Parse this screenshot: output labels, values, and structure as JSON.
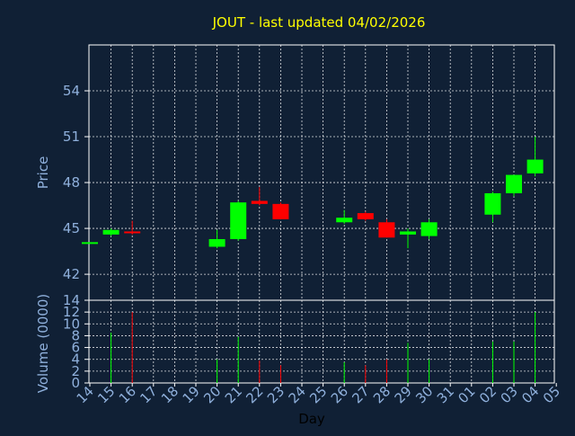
{
  "chart_data": [
    {
      "type": "candlestick",
      "title": "JOUT - last updated 04/02/2026",
      "ylabel": "Price",
      "ylim": [
        40.3,
        57.0
      ],
      "yticks": [
        42,
        45,
        48,
        51,
        54
      ],
      "grid": true,
      "colors": {
        "background": "#102035",
        "up": "#00ff00",
        "down": "#ff0000",
        "axis_text": "#8fb0dc",
        "title": "#ffff00",
        "grid": "#ffffff"
      },
      "x_ticks": [
        "14",
        "15",
        "16",
        "17",
        "18",
        "19",
        "20",
        "21",
        "22",
        "23",
        "24",
        "25",
        "26",
        "27",
        "28",
        "29",
        "30",
        "31",
        "01",
        "02",
        "03",
        "04",
        "05"
      ],
      "candles": [
        {
          "x": 0,
          "open": 44.1,
          "high": 44.1,
          "low": 44.1,
          "close": 44.1
        },
        {
          "x": 1,
          "open": 44.6,
          "high": 45.0,
          "low": 44.5,
          "close": 44.9
        },
        {
          "x": 2,
          "open": 44.8,
          "high": 45.5,
          "low": 44.6,
          "close": 44.7
        },
        {
          "x": 6,
          "open": 43.8,
          "high": 44.9,
          "low": 43.7,
          "close": 44.3
        },
        {
          "x": 7,
          "open": 44.3,
          "high": 46.8,
          "low": 44.2,
          "close": 46.7
        },
        {
          "x": 8,
          "open": 46.8,
          "high": 47.7,
          "low": 46.5,
          "close": 46.6
        },
        {
          "x": 9,
          "open": 46.6,
          "high": 46.7,
          "low": 45.6,
          "close": 45.6
        },
        {
          "x": 12,
          "open": 45.4,
          "high": 46.2,
          "low": 45.3,
          "close": 45.7
        },
        {
          "x": 13,
          "open": 46.0,
          "high": 46.1,
          "low": 45.5,
          "close": 45.6
        },
        {
          "x": 14,
          "open": 45.4,
          "high": 45.6,
          "low": 44.4,
          "close": 44.4
        },
        {
          "x": 15,
          "open": 44.6,
          "high": 45.0,
          "low": 43.7,
          "close": 44.8
        },
        {
          "x": 16,
          "open": 44.5,
          "high": 45.6,
          "low": 44.3,
          "close": 45.4
        },
        {
          "x": 19,
          "open": 45.9,
          "high": 47.4,
          "low": 45.4,
          "close": 47.3
        },
        {
          "x": 20,
          "open": 47.3,
          "high": 48.5,
          "low": 47.1,
          "close": 48.5
        },
        {
          "x": 21,
          "open": 48.6,
          "high": 51.0,
          "low": 48.4,
          "close": 49.5
        }
      ]
    },
    {
      "type": "bar",
      "ylabel": "Volume (0000)",
      "xlabel": "Day",
      "ylim": [
        0,
        14
      ],
      "yticks": [
        0,
        2,
        4,
        6,
        8,
        10,
        12,
        14
      ],
      "x_ticks": [
        "14",
        "15",
        "16",
        "17",
        "18",
        "19",
        "20",
        "21",
        "22",
        "23",
        "24",
        "25",
        "26",
        "27",
        "28",
        "29",
        "30",
        "31",
        "01",
        "02",
        "03",
        "04",
        "05"
      ],
      "bars": [
        {
          "x": 0,
          "value": 0,
          "color": "#00ff00"
        },
        {
          "x": 1,
          "value": 8.5,
          "color": "#00ff00"
        },
        {
          "x": 2,
          "value": 12,
          "color": "#ff0000"
        },
        {
          "x": 6,
          "value": 4,
          "color": "#00ff00"
        },
        {
          "x": 7,
          "value": 7.8,
          "color": "#00ff00"
        },
        {
          "x": 8,
          "value": 3.8,
          "color": "#ff0000"
        },
        {
          "x": 9,
          "value": 3,
          "color": "#ff0000"
        },
        {
          "x": 12,
          "value": 3.5,
          "color": "#00ff00"
        },
        {
          "x": 13,
          "value": 3,
          "color": "#ff0000"
        },
        {
          "x": 14,
          "value": 4,
          "color": "#ff0000"
        },
        {
          "x": 15,
          "value": 6.8,
          "color": "#00ff00"
        },
        {
          "x": 16,
          "value": 4,
          "color": "#00ff00"
        },
        {
          "x": 19,
          "value": 7,
          "color": "#00ff00"
        },
        {
          "x": 20,
          "value": 7,
          "color": "#00ff00"
        },
        {
          "x": 21,
          "value": 12,
          "color": "#00ff00"
        }
      ]
    }
  ]
}
